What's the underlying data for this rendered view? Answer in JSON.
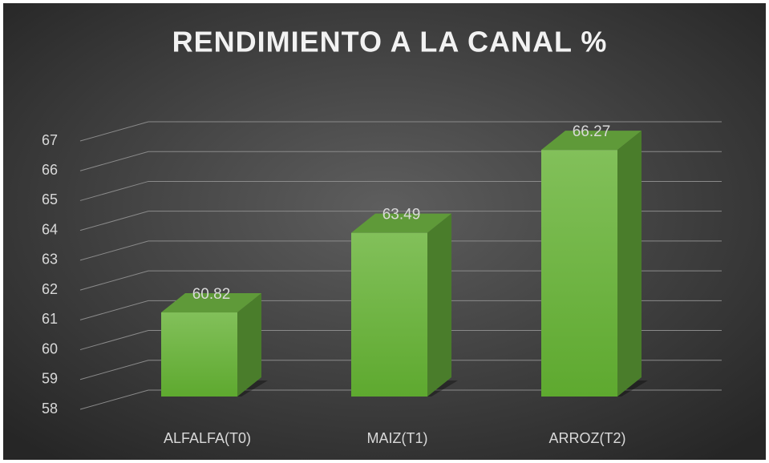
{
  "chart_data": {
    "type": "bar3d",
    "title": "RENDIMIENTO A LA CANAL %",
    "categories": [
      "ALFALFA(T0)",
      "MAIZ(T1)",
      "ARROZ(T2)"
    ],
    "values": [
      60.82,
      63.49,
      66.27
    ],
    "color": "#6db33f",
    "ylim": [
      58,
      67
    ],
    "yticks": [
      58,
      59,
      60,
      61,
      62,
      63,
      64,
      65,
      66,
      67
    ],
    "grid": true
  }
}
